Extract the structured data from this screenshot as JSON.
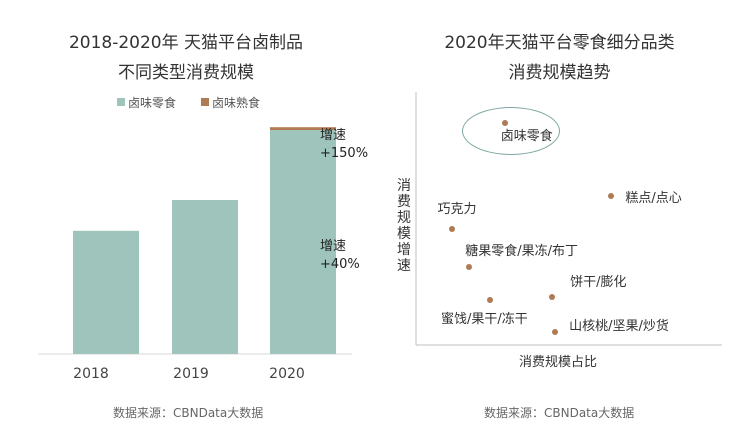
{
  "chart_data": [
    {
      "type": "bar",
      "title": "2018-2020年 天猫平台卤制品",
      "subtitle": "不同类型消费规模",
      "categories": [
        "2018",
        "2019",
        "2020"
      ],
      "series": [
        {
          "name": "卤味零食",
          "color": "#9ec4bb",
          "values": [
            44,
            55,
            80
          ]
        },
        {
          "name": "卤味熟食",
          "color": "#b07a53",
          "values": [
            0,
            0,
            1
          ]
        }
      ],
      "ylim": [
        0,
        100
      ],
      "grid": false,
      "legend": "top",
      "annotations": [
        {
          "line1": "增速",
          "line2": "+150%"
        },
        {
          "line1": "增速",
          "line2": "+40%"
        }
      ],
      "source": "数据来源：CBNData大数据"
    },
    {
      "type": "scatter",
      "title": "2020年天猫平台零食细分品类",
      "subtitle": "消费规模趋势",
      "xlabel": "消费规模占比",
      "ylabel": "消费规模增速",
      "xlim": [
        0,
        100
      ],
      "ylim": [
        0,
        100
      ],
      "points": [
        {
          "label": "卤味零食",
          "x": 30,
          "y": 88,
          "highlight": true
        },
        {
          "label": "糕点/点心",
          "x": 66,
          "y": 59
        },
        {
          "label": "巧克力",
          "x": 12,
          "y": 46
        },
        {
          "label": "糖果零食/果冻/布丁",
          "x": 18,
          "y": 31
        },
        {
          "label": "饼干/膨化",
          "x": 46,
          "y": 19
        },
        {
          "label": "蜜饯/果干/冻干",
          "x": 25,
          "y": 18
        },
        {
          "label": "山核桃/坚果/炒货",
          "x": 47,
          "y": 5
        }
      ],
      "source": "数据来源：CBNData大数据"
    }
  ]
}
